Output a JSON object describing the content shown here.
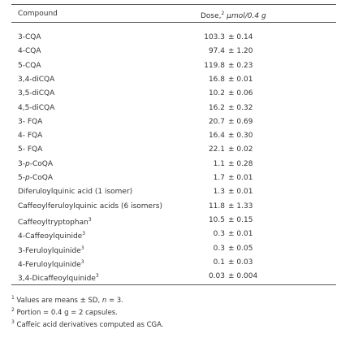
{
  "header": {
    "compound": "Compound",
    "dose": "Dose,",
    "dose_note": "2",
    "dose_unit": "μmol/0.4 g"
  },
  "rows": [
    {
      "compound": [
        "3-CQA"
      ],
      "mean": "103.3",
      "sd": "± 0.14"
    },
    {
      "compound": [
        "4-CQA"
      ],
      "mean": "97.4",
      "sd": "± 1.20"
    },
    {
      "compound": [
        "5-CQA"
      ],
      "mean": "119.8",
      "sd": "± 0.23"
    },
    {
      "compound": [
        "3,4-diCQA"
      ],
      "mean": "16.8",
      "sd": "± 0.01"
    },
    {
      "compound": [
        "3,5-diCQA"
      ],
      "mean": "10.2",
      "sd": "± 0.06"
    },
    {
      "compound": [
        "4,5-diCQA"
      ],
      "mean": "16.2",
      "sd": "± 0.32"
    },
    {
      "compound": [
        "3- FQA"
      ],
      "mean": "20.7",
      "sd": "± 0.69"
    },
    {
      "compound": [
        "4- FQA"
      ],
      "mean": "16.4",
      "sd": "± 0.30"
    },
    {
      "compound": [
        "5- FQA"
      ],
      "mean": "22.1",
      "sd": "± 0.02"
    },
    {
      "compound": [
        "3-",
        "p",
        "-CoQA"
      ],
      "mean": "1.1",
      "sd": "± 0.28"
    },
    {
      "compound": [
        "5-",
        "p",
        "-CoQA"
      ],
      "mean": "1.7",
      "sd": "± 0.01"
    },
    {
      "compound": [
        "Diferuloylquinic acid (1 isomer)"
      ],
      "mean": "1.3",
      "sd": "± 0.01"
    },
    {
      "compound": [
        "Caffeoylferuloylquinic acids (6 isomers)"
      ],
      "mean": "11.8",
      "sd": "± 1.33"
    },
    {
      "compound": [
        "Caffeoyltryptophan"
      ],
      "note": "3",
      "mean": "10.5",
      "sd": "± 0.15"
    },
    {
      "compound": [
        "4-Caffeoylquinide"
      ],
      "note": "3",
      "mean": "0.3",
      "sd": "± 0.01"
    },
    {
      "compound": [
        "3-Feruloylquinide"
      ],
      "note": "3",
      "mean": "0.3",
      "sd": "± 0.05"
    },
    {
      "compound": [
        "4-Feruloylquinide"
      ],
      "note": "3",
      "mean": "0.1",
      "sd": "± 0.03"
    },
    {
      "compound": [
        "3,4-Dicaffeoylquinide"
      ],
      "note": "3",
      "mean": "0.03",
      "sd": "± 0.004"
    }
  ],
  "footnotes": [
    {
      "mark": "1",
      "text": [
        "Values are means ± SD, ",
        "n",
        " = 3."
      ]
    },
    {
      "mark": "2",
      "text": [
        "Portion = 0.4 g = 2 capsules."
      ]
    },
    {
      "mark": "3",
      "text": [
        "Caffeic acid derivatives computed as CGA."
      ]
    }
  ]
}
